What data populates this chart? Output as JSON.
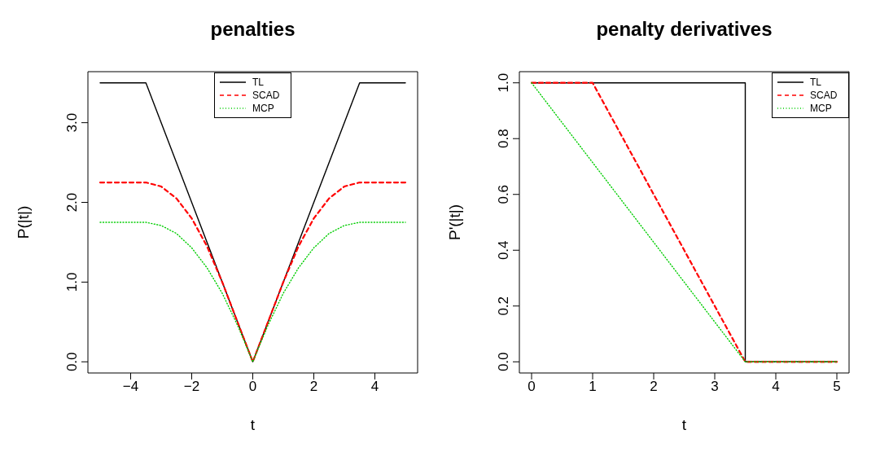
{
  "chart_data": [
    {
      "type": "line",
      "title": "penalties",
      "xlabel": "t",
      "ylabel": "P(|t|)",
      "xlim": [
        -5.4,
        5.4
      ],
      "ylim": [
        -0.14,
        3.64
      ],
      "xticks": [
        {
          "value": -4,
          "label": "−4"
        },
        {
          "value": -2,
          "label": "−2"
        },
        0,
        2,
        4
      ],
      "yticks": [
        {
          "value": 0,
          "label": "0.0"
        },
        {
          "value": 1,
          "label": "1.0"
        },
        {
          "value": 2,
          "label": "2.0"
        },
        {
          "value": 3,
          "label": "3.0"
        }
      ],
      "legend": "top",
      "marker": "none",
      "grid": false,
      "series": [
        {
          "name": "TL",
          "color": "#000000",
          "line_style": "solid",
          "x": [
            -5,
            -3.5,
            0,
            3.5,
            5
          ],
          "values": [
            3.5,
            3.5,
            0,
            3.5,
            3.5
          ]
        },
        {
          "name": "SCAD",
          "color": "#ff0000",
          "line_style": "dashed",
          "x": [
            -5,
            -3.5,
            -3,
            -2.5,
            -2,
            -1.5,
            -1,
            0,
            1,
            1.5,
            2,
            2.5,
            3,
            3.5,
            5
          ],
          "values": [
            2.25,
            2.25,
            2.2,
            2.05,
            1.8,
            1.45,
            1,
            0,
            1,
            1.45,
            1.8,
            2.05,
            2.2,
            2.25,
            2.25
          ]
        },
        {
          "name": "MCP",
          "color": "#00cd00",
          "line_style": "dotted",
          "x": [
            -5,
            -3.5,
            -3,
            -2.5,
            -2,
            -1.5,
            -1,
            -0.5,
            0,
            0.5,
            1,
            1.5,
            2,
            2.5,
            3,
            3.5,
            5
          ],
          "values": [
            1.75,
            1.75,
            1.71,
            1.61,
            1.43,
            1.18,
            0.86,
            0.46,
            0,
            0.46,
            0.86,
            1.18,
            1.43,
            1.61,
            1.71,
            1.75,
            1.75
          ]
        }
      ]
    },
    {
      "type": "line",
      "title": "penalty derivatives",
      "xlabel": "t",
      "ylabel": "P'(|t|)",
      "xlim": [
        -0.2,
        5.2
      ],
      "ylim": [
        -0.04,
        1.04
      ],
      "xticks": [
        0,
        1,
        2,
        3,
        4,
        5
      ],
      "yticks": [
        {
          "value": 0,
          "label": "0.0"
        },
        {
          "value": 0.2,
          "label": "0.2"
        },
        {
          "value": 0.4,
          "label": "0.4"
        },
        {
          "value": 0.6,
          "label": "0.6"
        },
        {
          "value": 0.8,
          "label": "0.8"
        },
        {
          "value": 1,
          "label": "1.0"
        }
      ],
      "legend": "top right",
      "marker": "none",
      "grid": false,
      "series": [
        {
          "name": "TL",
          "color": "#000000",
          "line_style": "solid",
          "x": [
            0,
            3.5,
            3.5,
            5
          ],
          "values": [
            1,
            1,
            0,
            0
          ]
        },
        {
          "name": "SCAD",
          "color": "#ff0000",
          "line_style": "dashed",
          "x": [
            0,
            1,
            3.5,
            5
          ],
          "values": [
            1,
            1,
            0,
            0
          ]
        },
        {
          "name": "MCP",
          "color": "#00cd00",
          "line_style": "dotted",
          "x": [
            0,
            3.5,
            5
          ],
          "values": [
            1,
            0,
            0
          ]
        }
      ]
    }
  ]
}
